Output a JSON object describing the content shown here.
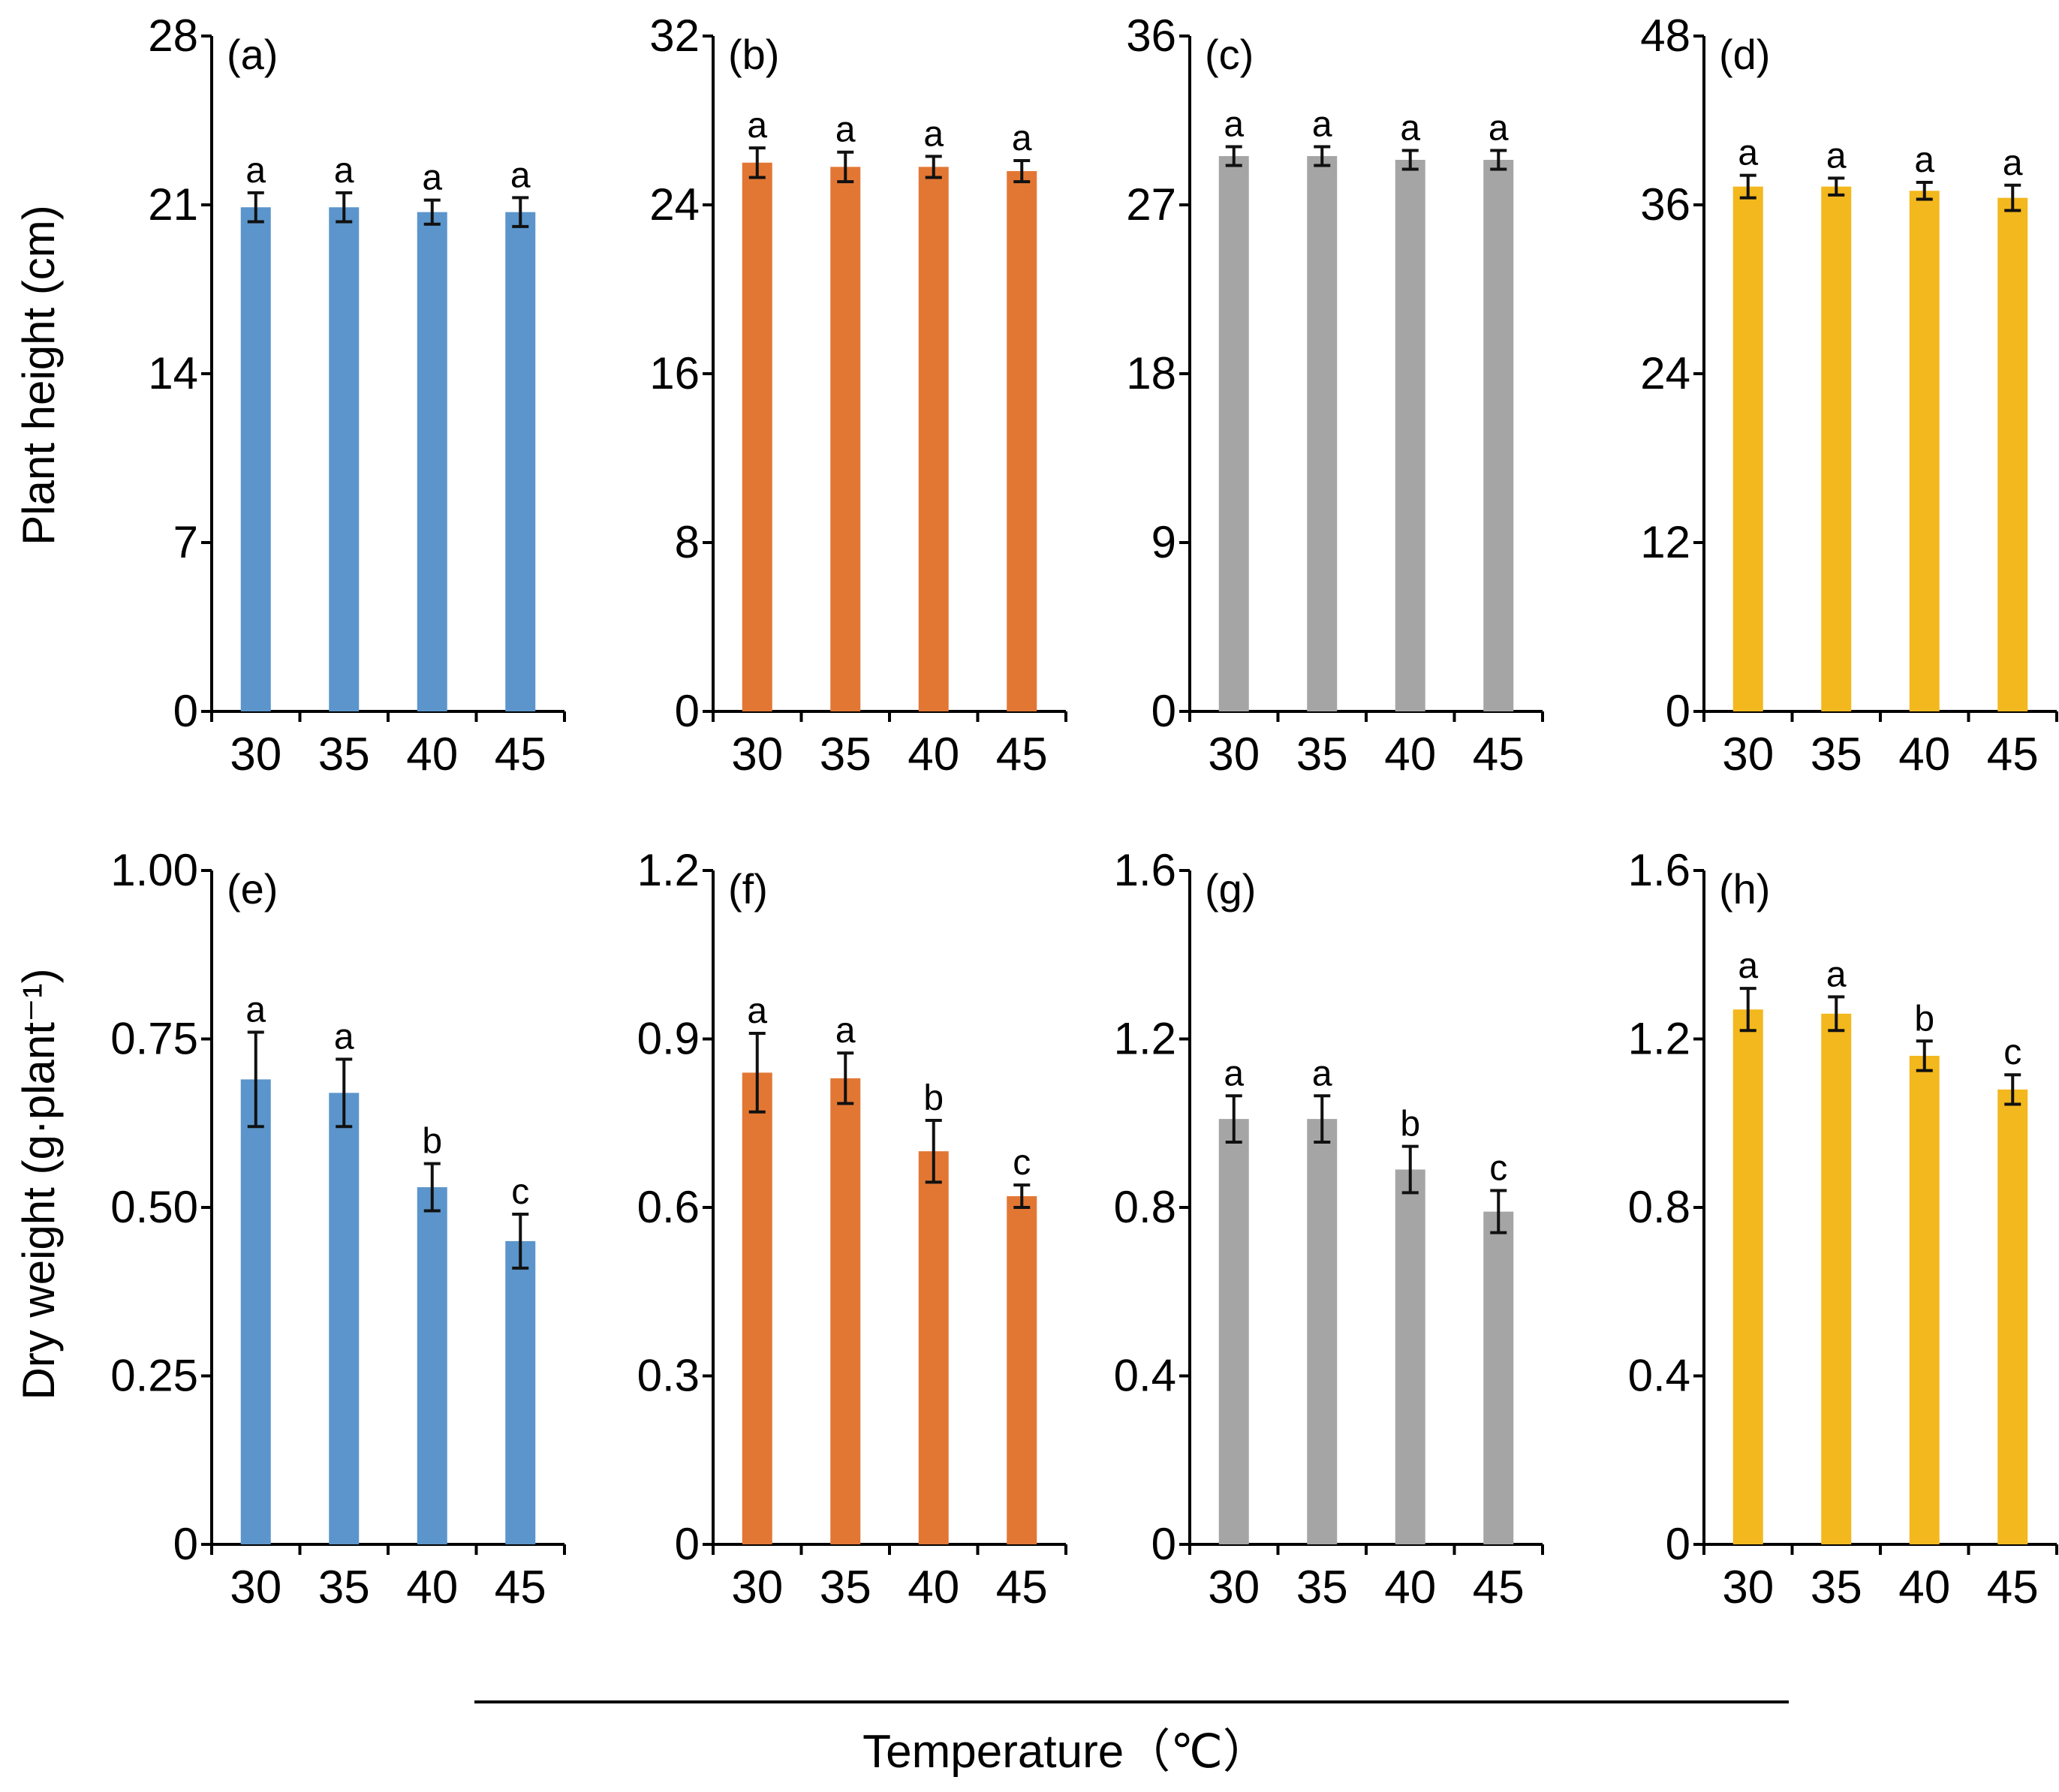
{
  "figure": {
    "xlabel": "Temperature（℃）",
    "row_ylabels": [
      "Plant height (cm)",
      "Dry weight (g·plant⁻¹)"
    ]
  },
  "colors": {
    "blue": "#5b95cb",
    "orange": "#e27734",
    "gray": "#a5a5a5",
    "yellow": "#f3b81e",
    "axis": "#000000"
  },
  "chart_data": [
    {
      "type": "bar",
      "panel": "(a)",
      "row": 0,
      "col": 0,
      "color_key": "blue",
      "categories": [
        "30",
        "35",
        "40",
        "45"
      ],
      "values": [
        20.9,
        20.9,
        20.7,
        20.7
      ],
      "errors": [
        0.6,
        0.6,
        0.5,
        0.6
      ],
      "labels": [
        "a",
        "a",
        "a",
        "a"
      ],
      "ylim": [
        0,
        28
      ],
      "yticks": [
        0,
        7,
        14,
        21,
        28
      ],
      "ytick_labels": [
        "0",
        "7",
        "14",
        "21",
        "28"
      ],
      "ylabel": "Plant height (cm)",
      "xlabel": ""
    },
    {
      "type": "bar",
      "panel": "(b)",
      "row": 0,
      "col": 1,
      "color_key": "orange",
      "categories": [
        "30",
        "35",
        "40",
        "45"
      ],
      "values": [
        26.0,
        25.8,
        25.8,
        25.6
      ],
      "errors": [
        0.7,
        0.7,
        0.5,
        0.5
      ],
      "labels": [
        "a",
        "a",
        "a",
        "a"
      ],
      "ylim": [
        0,
        32
      ],
      "yticks": [
        0,
        8,
        16,
        24,
        32
      ],
      "ytick_labels": [
        "0",
        "8",
        "16",
        "24",
        "32"
      ],
      "ylabel": "",
      "xlabel": ""
    },
    {
      "type": "bar",
      "panel": "(c)",
      "row": 0,
      "col": 2,
      "color_key": "gray",
      "categories": [
        "30",
        "35",
        "40",
        "45"
      ],
      "values": [
        29.6,
        29.6,
        29.4,
        29.4
      ],
      "errors": [
        0.5,
        0.5,
        0.5,
        0.5
      ],
      "labels": [
        "a",
        "a",
        "a",
        "a"
      ],
      "ylim": [
        0,
        36
      ],
      "yticks": [
        0,
        9,
        18,
        27,
        36
      ],
      "ytick_labels": [
        "0",
        "9",
        "18",
        "27",
        "36"
      ],
      "ylabel": "",
      "xlabel": ""
    },
    {
      "type": "bar",
      "panel": "(d)",
      "row": 0,
      "col": 3,
      "color_key": "yellow",
      "categories": [
        "30",
        "35",
        "40",
        "45"
      ],
      "values": [
        37.3,
        37.3,
        37.0,
        36.5
      ],
      "errors": [
        0.8,
        0.6,
        0.6,
        0.9
      ],
      "labels": [
        "a",
        "a",
        "a",
        "a"
      ],
      "ylim": [
        0,
        48
      ],
      "yticks": [
        0,
        12,
        24,
        36,
        48
      ],
      "ytick_labels": [
        "0",
        "12",
        "24",
        "36",
        "48"
      ],
      "ylabel": "",
      "xlabel": ""
    },
    {
      "type": "bar",
      "panel": "(e)",
      "row": 1,
      "col": 0,
      "color_key": "blue",
      "categories": [
        "30",
        "35",
        "40",
        "45"
      ],
      "values": [
        0.69,
        0.67,
        0.53,
        0.45
      ],
      "errors": [
        0.07,
        0.05,
        0.035,
        0.04
      ],
      "labels": [
        "a",
        "a",
        "b",
        "c"
      ],
      "ylim": [
        0,
        1.0
      ],
      "yticks": [
        0,
        0.25,
        0.5,
        0.75,
        1.0
      ],
      "ytick_labels": [
        "0",
        "0.25",
        "0.50",
        "0.75",
        "1.00"
      ],
      "ylabel": "Dry weight (g·plant⁻¹)",
      "xlabel": ""
    },
    {
      "type": "bar",
      "panel": "(f)",
      "row": 1,
      "col": 1,
      "color_key": "orange",
      "categories": [
        "30",
        "35",
        "40",
        "45"
      ],
      "values": [
        0.84,
        0.83,
        0.7,
        0.62
      ],
      "errors": [
        0.07,
        0.045,
        0.055,
        0.02
      ],
      "labels": [
        "a",
        "a",
        "b",
        "c"
      ],
      "ylim": [
        0,
        1.2
      ],
      "yticks": [
        0,
        0.3,
        0.6,
        0.9,
        1.2
      ],
      "ytick_labels": [
        "0",
        "0.3",
        "0.6",
        "0.9",
        "1.2"
      ],
      "ylabel": "",
      "xlabel": ""
    },
    {
      "type": "bar",
      "panel": "(g)",
      "row": 1,
      "col": 2,
      "color_key": "gray",
      "categories": [
        "30",
        "35",
        "40",
        "45"
      ],
      "values": [
        1.01,
        1.01,
        0.89,
        0.79
      ],
      "errors": [
        0.055,
        0.055,
        0.055,
        0.05
      ],
      "labels": [
        "a",
        "a",
        "b",
        "c"
      ],
      "ylim": [
        0,
        1.6
      ],
      "yticks": [
        0,
        0.4,
        0.8,
        1.2,
        1.6
      ],
      "ytick_labels": [
        "0",
        "0.4",
        "0.8",
        "1.2",
        "1.6"
      ],
      "ylabel": "",
      "xlabel": ""
    },
    {
      "type": "bar",
      "panel": "(h)",
      "row": 1,
      "col": 3,
      "color_key": "yellow",
      "categories": [
        "30",
        "35",
        "40",
        "45"
      ],
      "values": [
        1.27,
        1.26,
        1.16,
        1.08
      ],
      "errors": [
        0.05,
        0.04,
        0.035,
        0.035
      ],
      "labels": [
        "a",
        "a",
        "b",
        "c"
      ],
      "ylim": [
        0,
        1.6
      ],
      "yticks": [
        0,
        0.4,
        0.8,
        1.2,
        1.6
      ],
      "ytick_labels": [
        "0",
        "0.4",
        "0.8",
        "1.2",
        "1.6"
      ],
      "ylabel": "",
      "xlabel": ""
    }
  ]
}
